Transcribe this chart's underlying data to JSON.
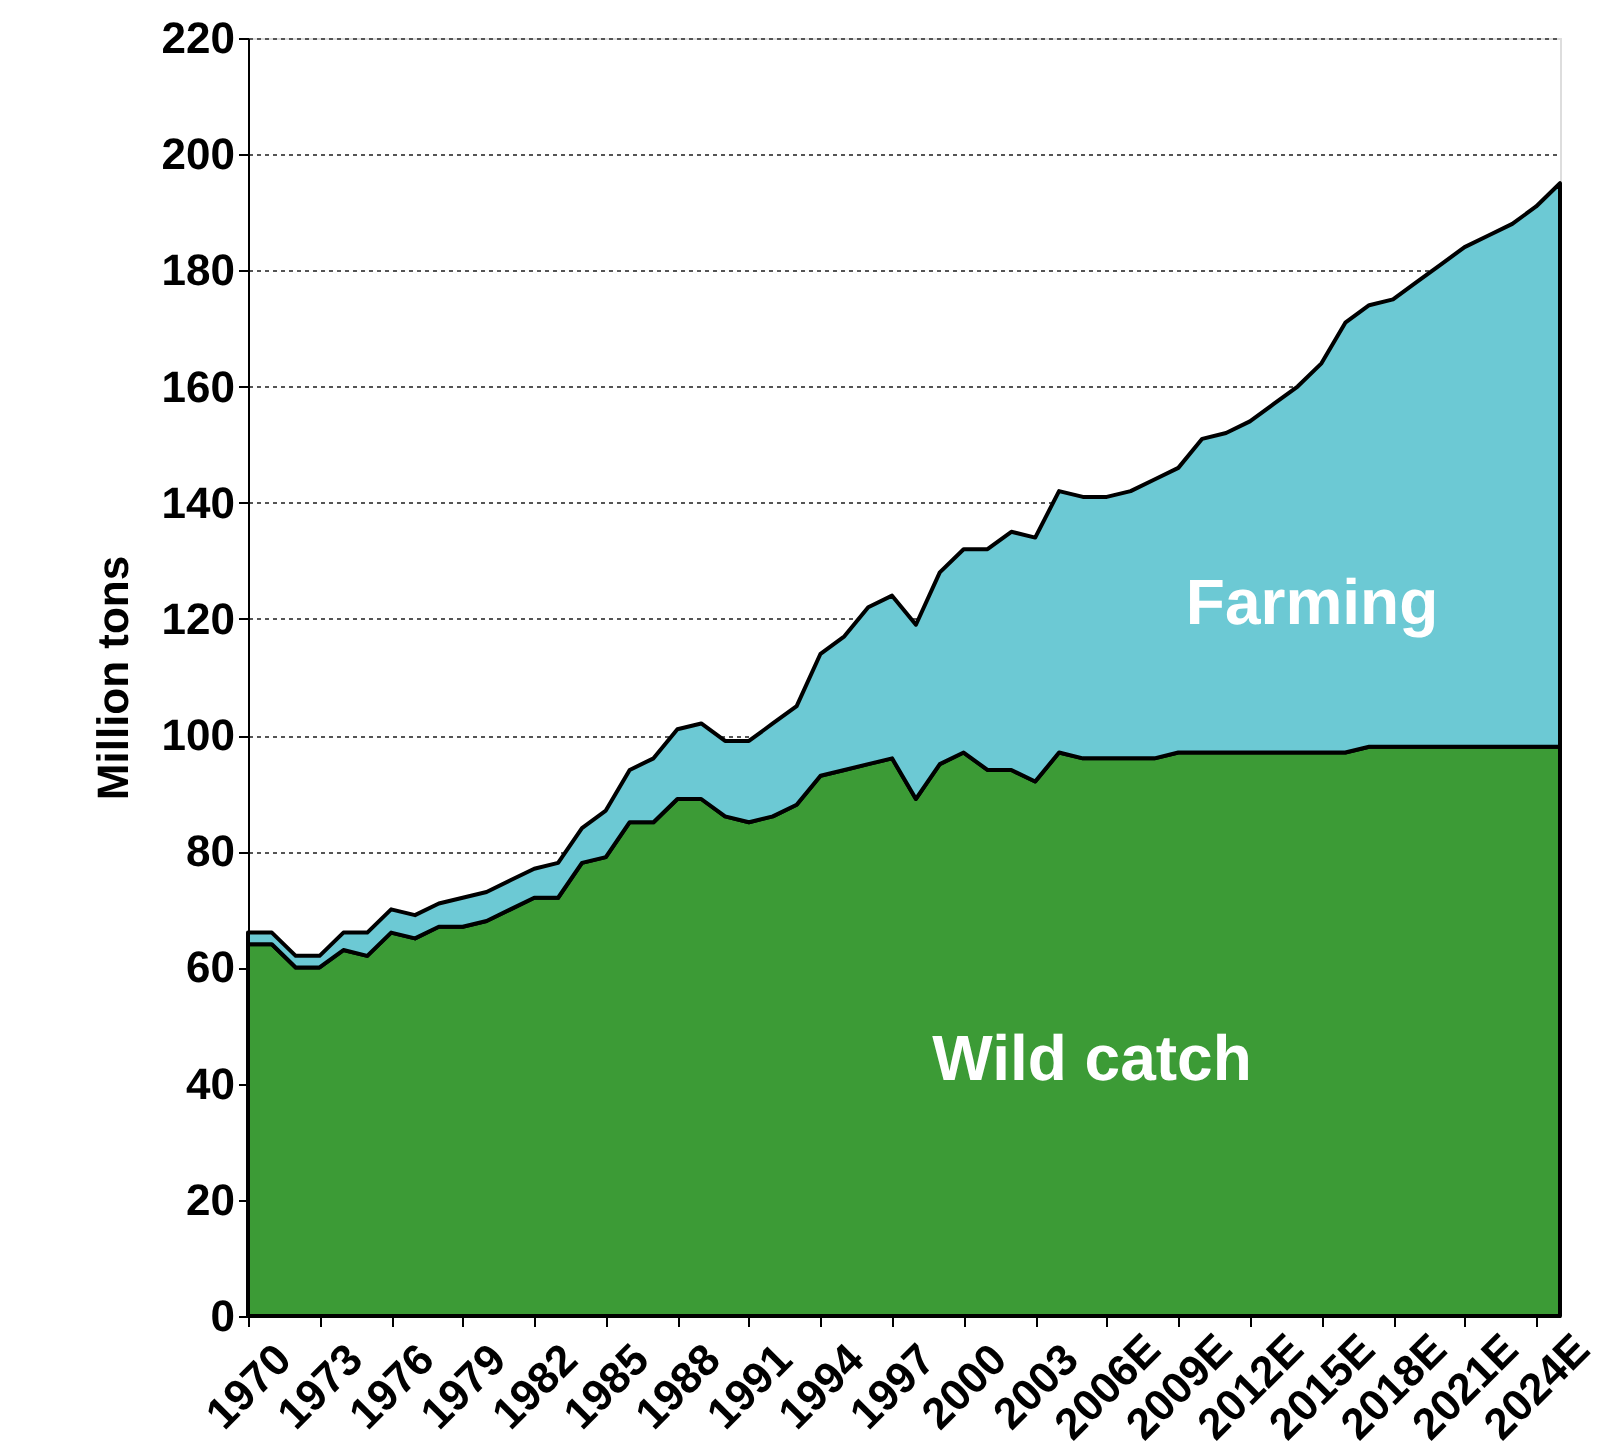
{
  "chart_data": {
    "type": "area",
    "stacked": true,
    "ylabel": "Million tons",
    "categories": [
      "1970",
      null,
      null,
      "1973",
      null,
      null,
      "1976",
      null,
      null,
      "1979",
      null,
      null,
      "1982",
      null,
      null,
      "1985",
      null,
      null,
      "1988",
      null,
      null,
      "1991",
      null,
      null,
      "1994",
      null,
      null,
      "1997",
      null,
      null,
      "2000",
      null,
      null,
      "2003",
      null,
      null,
      "2006E",
      null,
      null,
      "2009E",
      null,
      null,
      "2012E",
      null,
      null,
      "2015E",
      null,
      null,
      "2018E",
      null,
      null,
      "2021E",
      null,
      null,
      "2024E",
      null
    ],
    "series": [
      {
        "name": "Wild catch",
        "color": "#3c9b36",
        "values": [
          64,
          64,
          60,
          60,
          63,
          62,
          66,
          65,
          67,
          67,
          68,
          70,
          72,
          72,
          78,
          79,
          85,
          85,
          89,
          89,
          86,
          85,
          86,
          88,
          93,
          94,
          95,
          96,
          89,
          95,
          97,
          94,
          94,
          92,
          97,
          96,
          96,
          96,
          96,
          97,
          97,
          97,
          97,
          97,
          97,
          97,
          97,
          98,
          98,
          98,
          98,
          98,
          98,
          98,
          98,
          98
        ]
      },
      {
        "name": "Farming",
        "color": "#6cc9d4",
        "values": [
          2,
          2,
          2,
          2,
          3,
          4,
          4,
          4,
          4,
          5,
          5,
          5,
          5,
          6,
          6,
          8,
          9,
          11,
          12,
          13,
          13,
          14,
          16,
          17,
          21,
          23,
          27,
          28,
          30,
          33,
          35,
          38,
          41,
          42,
          45,
          45,
          45,
          46,
          48,
          49,
          54,
          55,
          57,
          60,
          63,
          67,
          74,
          76,
          77,
          80,
          83,
          86,
          88,
          90,
          93,
          97
        ]
      }
    ],
    "ylim": [
      0,
      220
    ],
    "yticks": [
      0,
      20,
      40,
      60,
      80,
      100,
      120,
      140,
      160,
      180,
      200,
      220
    ],
    "grid": "y",
    "legend": false
  }
}
